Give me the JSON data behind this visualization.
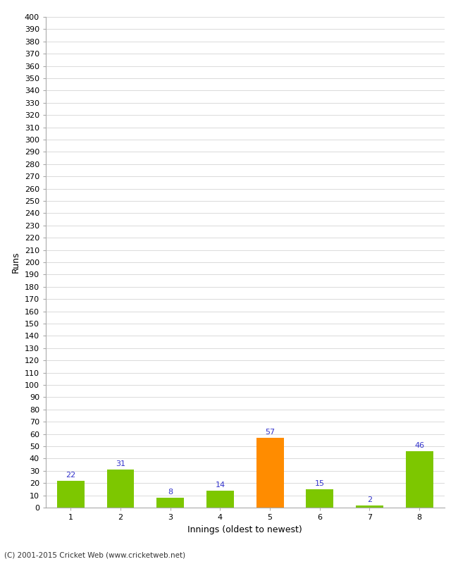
{
  "categories": [
    "1",
    "2",
    "3",
    "4",
    "5",
    "6",
    "7",
    "8"
  ],
  "values": [
    22,
    31,
    8,
    14,
    57,
    15,
    2,
    46
  ],
  "bar_colors": [
    "#7dc700",
    "#7dc700",
    "#7dc700",
    "#7dc700",
    "#ff8c00",
    "#7dc700",
    "#7dc700",
    "#7dc700"
  ],
  "xlabel": "Innings (oldest to newest)",
  "ylabel": "Runs",
  "ylim": [
    0,
    400
  ],
  "ytick_step": 10,
  "ytick_label_step": 10,
  "label_color": "#3333cc",
  "label_fontsize": 8,
  "axis_fontsize": 9,
  "tick_fontsize": 8,
  "background_color": "#ffffff",
  "grid_color": "#cccccc",
  "footer": "(C) 2001-2015 Cricket Web (www.cricketweb.net)",
  "bar_width": 0.55
}
